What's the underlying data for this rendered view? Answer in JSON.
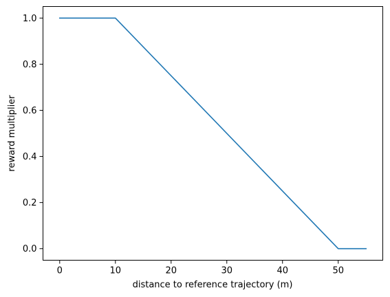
{
  "chart_data": {
    "type": "line",
    "title": "",
    "xlabel": "distance to reference trajectory (m)",
    "ylabel": "reward multiplier",
    "xlim": [
      -3,
      58
    ],
    "ylim": [
      -0.05,
      1.05
    ],
    "x_ticks": [
      0,
      10,
      20,
      30,
      40,
      50
    ],
    "y_ticks": [
      0.0,
      0.2,
      0.4,
      0.6,
      0.8,
      1.0
    ],
    "x_tick_labels": [
      "0",
      "10",
      "20",
      "30",
      "40",
      "50"
    ],
    "y_tick_labels": [
      "0.0",
      "0.2",
      "0.4",
      "0.6",
      "0.8",
      "1.0"
    ],
    "grid": false,
    "series": [
      {
        "color": "#1f77b4",
        "x": [
          0,
          10,
          50,
          55
        ],
        "y": [
          1.0,
          1.0,
          0.0,
          0.0
        ]
      }
    ]
  }
}
